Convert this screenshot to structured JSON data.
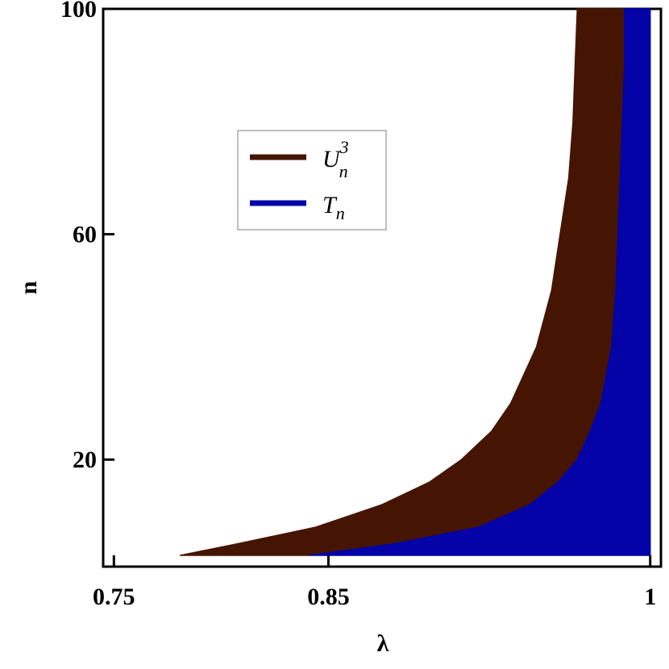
{
  "chart_data": {
    "type": "area",
    "xlabel": "λ",
    "ylabel": "n",
    "xlim": [
      0.745,
      1.005
    ],
    "ylim": [
      1,
      100
    ],
    "x_ticks": [
      {
        "value": 0.75,
        "label": "0.75"
      },
      {
        "value": 0.85,
        "label": "0.85"
      },
      {
        "value": 1.0,
        "label": "1"
      }
    ],
    "y_ticks": [
      {
        "value": 20,
        "label": "20"
      },
      {
        "value": 60,
        "label": "60"
      },
      {
        "value": 100,
        "label": "100"
      }
    ],
    "grid": false,
    "legend_position": "upper-left inside",
    "series": [
      {
        "name": "U_n^3",
        "legend_base": "U",
        "legend_sub": "n",
        "legend_sup": "3",
        "color": "#461403",
        "n": [
          3,
          5,
          8,
          12,
          16,
          20,
          25,
          30,
          40,
          50,
          60,
          70,
          80,
          90,
          100
        ],
        "lambda_lower": [
          0.781,
          0.807,
          0.844,
          0.875,
          0.897,
          0.912,
          0.926,
          0.935,
          0.947,
          0.954,
          0.958,
          0.962,
          0.964,
          0.965,
          0.966
        ],
        "lambda_upper": [
          0.841,
          0.88,
          0.92,
          0.944,
          0.957,
          0.966,
          0.972,
          0.977,
          0.982,
          0.984,
          0.985,
          0.986,
          0.987,
          0.988,
          0.988
        ]
      },
      {
        "name": "T_n",
        "legend_base": "T",
        "legend_sub": "n",
        "legend_sup": "",
        "color": "#0303a8",
        "n": [
          3,
          5,
          8,
          12,
          16,
          20,
          25,
          30,
          40,
          50,
          60,
          70,
          80,
          90,
          100
        ],
        "lambda_lower": [
          0.841,
          0.88,
          0.92,
          0.944,
          0.957,
          0.966,
          0.972,
          0.977,
          0.982,
          0.984,
          0.985,
          0.986,
          0.987,
          0.988,
          0.988
        ],
        "lambda_upper": [
          1,
          1,
          1,
          1,
          1,
          1,
          1,
          1,
          1,
          1,
          1,
          1,
          1,
          1,
          1
        ]
      }
    ]
  }
}
